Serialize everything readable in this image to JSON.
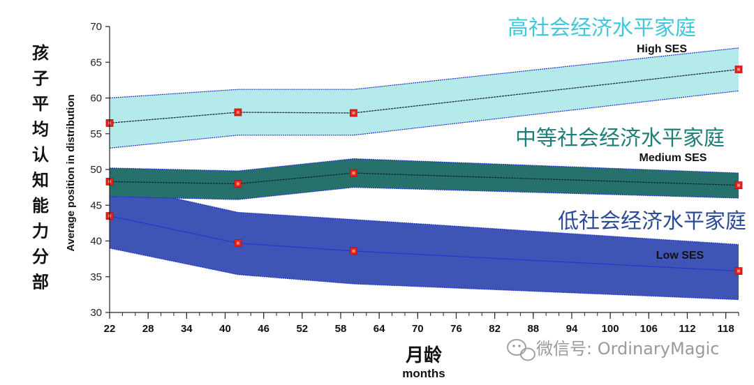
{
  "chart_data": {
    "type": "area",
    "ylabel_cn": "孩子平均认知能力分部",
    "ylabel": "Average position in distribution",
    "xlabel_cn": "月龄",
    "xlabel": "months",
    "xlim": [
      22,
      120
    ],
    "ylim": [
      30,
      70
    ],
    "x_ticks": [
      22,
      28,
      34,
      40,
      46,
      52,
      58,
      64,
      70,
      76,
      82,
      88,
      94,
      100,
      106,
      112,
      118
    ],
    "y_ticks": [
      30,
      35,
      40,
      45,
      50,
      55,
      60,
      65,
      70
    ],
    "series": [
      {
        "name": "High SES",
        "name_cn": "高社会经济水平家庭",
        "color": "#b5eaea",
        "label_color": "#3fc8dc",
        "x": [
          22,
          42,
          60,
          120
        ],
        "values": [
          56.5,
          58.0,
          57.9,
          64.0
        ],
        "band_upper": [
          60.0,
          61.2,
          61.2,
          67.0
        ],
        "band_lower": [
          53.0,
          54.8,
          54.8,
          61.0
        ]
      },
      {
        "name": "Medium SES",
        "name_cn": "中等社会经济水平家庭",
        "color": "#27716d",
        "label_color": "#1f7f78",
        "x": [
          22,
          42,
          60,
          120
        ],
        "values": [
          48.3,
          48.0,
          49.5,
          47.8
        ],
        "band_upper": [
          50.2,
          49.8,
          51.5,
          49.5
        ],
        "band_lower": [
          46.2,
          45.8,
          47.5,
          46.0
        ]
      },
      {
        "name": "Low SES",
        "name_cn": "低社会经济水平家庭",
        "color": "#3f55b5",
        "label_color": "#2c4a9a",
        "x": [
          22,
          42,
          60,
          120
        ],
        "values": [
          43.5,
          39.7,
          38.6,
          35.8
        ],
        "band_upper": [
          48.0,
          44.0,
          43.0,
          39.5
        ],
        "band_lower": [
          39.0,
          35.3,
          34.0,
          31.8
        ]
      }
    ]
  },
  "watermark": {
    "icon": "wechat-icon",
    "text": "微信号: OrdinaryMagic"
  }
}
